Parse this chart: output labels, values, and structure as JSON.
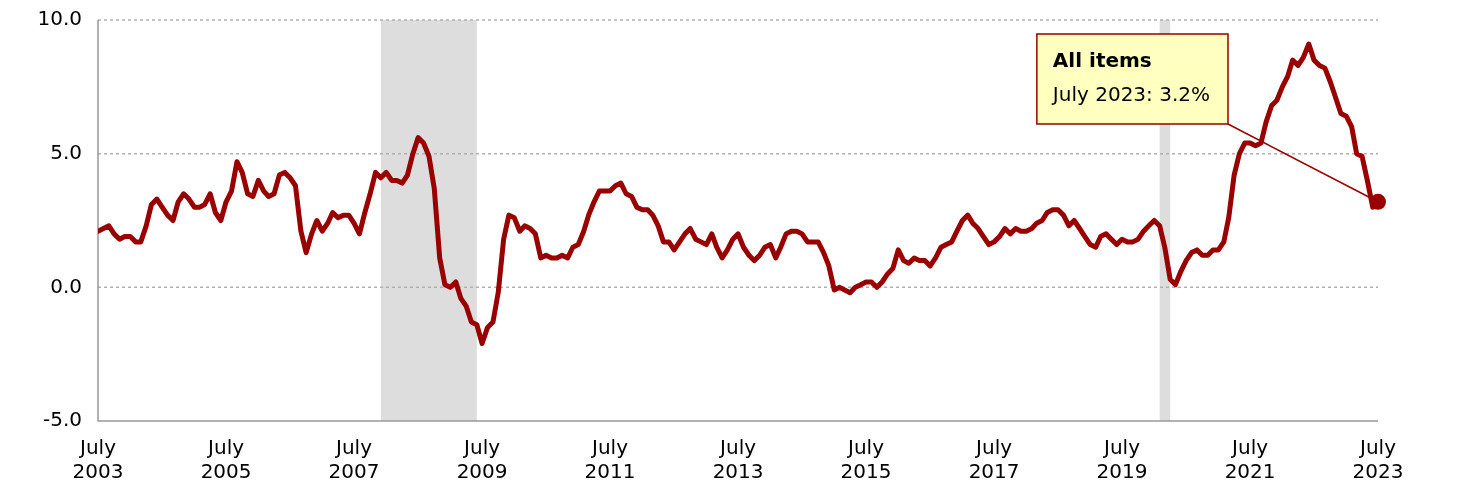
{
  "chart_data": {
    "type": "line",
    "x": [
      "2003-07",
      "2003-08",
      "2003-09",
      "2003-10",
      "2003-11",
      "2003-12",
      "2004-01",
      "2004-02",
      "2004-03",
      "2004-04",
      "2004-05",
      "2004-06",
      "2004-07",
      "2004-08",
      "2004-09",
      "2004-10",
      "2004-11",
      "2004-12",
      "2005-01",
      "2005-02",
      "2005-03",
      "2005-04",
      "2005-05",
      "2005-06",
      "2005-07",
      "2005-08",
      "2005-09",
      "2005-10",
      "2005-11",
      "2005-12",
      "2006-01",
      "2006-02",
      "2006-03",
      "2006-04",
      "2006-05",
      "2006-06",
      "2006-07",
      "2006-08",
      "2006-09",
      "2006-10",
      "2006-11",
      "2006-12",
      "2007-01",
      "2007-02",
      "2007-03",
      "2007-04",
      "2007-05",
      "2007-06",
      "2007-07",
      "2007-08",
      "2007-09",
      "2007-10",
      "2007-11",
      "2007-12",
      "2008-01",
      "2008-02",
      "2008-03",
      "2008-04",
      "2008-05",
      "2008-06",
      "2008-07",
      "2008-08",
      "2008-09",
      "2008-10",
      "2008-11",
      "2008-12",
      "2009-01",
      "2009-02",
      "2009-03",
      "2009-04",
      "2009-05",
      "2009-06",
      "2009-07",
      "2009-08",
      "2009-09",
      "2009-10",
      "2009-11",
      "2009-12",
      "2010-01",
      "2010-02",
      "2010-03",
      "2010-04",
      "2010-05",
      "2010-06",
      "2010-07",
      "2010-08",
      "2010-09",
      "2010-10",
      "2010-11",
      "2010-12",
      "2011-01",
      "2011-02",
      "2011-03",
      "2011-04",
      "2011-05",
      "2011-06",
      "2011-07",
      "2011-08",
      "2011-09",
      "2011-10",
      "2011-11",
      "2011-12",
      "2012-01",
      "2012-02",
      "2012-03",
      "2012-04",
      "2012-05",
      "2012-06",
      "2012-07",
      "2012-08",
      "2012-09",
      "2012-10",
      "2012-11",
      "2012-12",
      "2013-01",
      "2013-02",
      "2013-03",
      "2013-04",
      "2013-05",
      "2013-06",
      "2013-07",
      "2013-08",
      "2013-09",
      "2013-10",
      "2013-11",
      "2013-12",
      "2014-01",
      "2014-02",
      "2014-03",
      "2014-04",
      "2014-05",
      "2014-06",
      "2014-07",
      "2014-08",
      "2014-09",
      "2014-10",
      "2014-11",
      "2014-12",
      "2015-01",
      "2015-02",
      "2015-03",
      "2015-04",
      "2015-05",
      "2015-06",
      "2015-07",
      "2015-08",
      "2015-09",
      "2015-10",
      "2015-11",
      "2015-12",
      "2016-01",
      "2016-02",
      "2016-03",
      "2016-04",
      "2016-05",
      "2016-06",
      "2016-07",
      "2016-08",
      "2016-09",
      "2016-10",
      "2016-11",
      "2016-12",
      "2017-01",
      "2017-02",
      "2017-03",
      "2017-04",
      "2017-05",
      "2017-06",
      "2017-07",
      "2017-08",
      "2017-09",
      "2017-10",
      "2017-11",
      "2017-12",
      "2018-01",
      "2018-02",
      "2018-03",
      "2018-04",
      "2018-05",
      "2018-06",
      "2018-07",
      "2018-08",
      "2018-09",
      "2018-10",
      "2018-11",
      "2018-12",
      "2019-01",
      "2019-02",
      "2019-03",
      "2019-04",
      "2019-05",
      "2019-06",
      "2019-07",
      "2019-08",
      "2019-09",
      "2019-10",
      "2019-11",
      "2019-12",
      "2020-01",
      "2020-02",
      "2020-03",
      "2020-04",
      "2020-05",
      "2020-06",
      "2020-07",
      "2020-08",
      "2020-09",
      "2020-10",
      "2020-11",
      "2020-12",
      "2021-01",
      "2021-02",
      "2021-03",
      "2021-04",
      "2021-05",
      "2021-06",
      "2021-07",
      "2021-08",
      "2021-09",
      "2021-10",
      "2021-11",
      "2021-12",
      "2022-01",
      "2022-02",
      "2022-03",
      "2022-04",
      "2022-05",
      "2022-06",
      "2022-07",
      "2022-08",
      "2022-09",
      "2022-10",
      "2022-11",
      "2022-12",
      "2023-01",
      "2023-02",
      "2023-03",
      "2023-04",
      "2023-05",
      "2023-06",
      "2023-07"
    ],
    "series": [
      {
        "name": "All items",
        "color": "#990000",
        "values": [
          2.1,
          2.2,
          2.3,
          2.0,
          1.8,
          1.9,
          1.9,
          1.7,
          1.7,
          2.3,
          3.1,
          3.3,
          3.0,
          2.7,
          2.5,
          3.2,
          3.5,
          3.3,
          3.0,
          3.0,
          3.1,
          3.5,
          2.8,
          2.5,
          3.2,
          3.6,
          4.7,
          4.3,
          3.5,
          3.4,
          4.0,
          3.6,
          3.4,
          3.5,
          4.2,
          4.3,
          4.1,
          3.8,
          2.1,
          1.3,
          2.0,
          2.5,
          2.1,
          2.4,
          2.8,
          2.6,
          2.7,
          2.7,
          2.4,
          2.0,
          2.8,
          3.5,
          4.3,
          4.1,
          4.3,
          4.0,
          4.0,
          3.9,
          4.2,
          5.0,
          5.6,
          5.4,
          4.9,
          3.7,
          1.1,
          0.1,
          0.0,
          0.2,
          -0.4,
          -0.7,
          -1.3,
          -1.4,
          -2.1,
          -1.5,
          -1.3,
          -0.2,
          1.8,
          2.7,
          2.6,
          2.1,
          2.3,
          2.2,
          2.0,
          1.1,
          1.2,
          1.1,
          1.1,
          1.2,
          1.1,
          1.5,
          1.6,
          2.1,
          2.7,
          3.2,
          3.6,
          3.6,
          3.6,
          3.8,
          3.9,
          3.5,
          3.4,
          3.0,
          2.9,
          2.9,
          2.7,
          2.3,
          1.7,
          1.7,
          1.4,
          1.7,
          2.0,
          2.2,
          1.8,
          1.7,
          1.6,
          2.0,
          1.5,
          1.1,
          1.4,
          1.8,
          2.0,
          1.5,
          1.2,
          1.0,
          1.2,
          1.5,
          1.6,
          1.1,
          1.5,
          2.0,
          2.1,
          2.1,
          2.0,
          1.7,
          1.7,
          1.7,
          1.3,
          0.8,
          -0.1,
          0.0,
          -0.1,
          -0.2,
          0.0,
          0.1,
          0.2,
          0.2,
          0.0,
          0.2,
          0.5,
          0.7,
          1.4,
          1.0,
          0.9,
          1.1,
          1.0,
          1.0,
          0.8,
          1.1,
          1.5,
          1.6,
          1.7,
          2.1,
          2.5,
          2.7,
          2.4,
          2.2,
          1.9,
          1.6,
          1.7,
          1.9,
          2.2,
          2.0,
          2.2,
          2.1,
          2.1,
          2.2,
          2.4,
          2.5,
          2.8,
          2.9,
          2.9,
          2.7,
          2.3,
          2.5,
          2.2,
          1.9,
          1.6,
          1.5,
          1.9,
          2.0,
          1.8,
          1.6,
          1.8,
          1.7,
          1.7,
          1.8,
          2.1,
          2.3,
          2.5,
          2.3,
          1.5,
          0.3,
          0.1,
          0.6,
          1.0,
          1.3,
          1.4,
          1.2,
          1.2,
          1.4,
          1.4,
          1.7,
          2.6,
          4.2,
          5.0,
          5.4,
          5.4,
          5.3,
          5.4,
          6.2,
          6.8,
          7.0,
          7.5,
          7.9,
          8.5,
          8.3,
          8.6,
          9.1,
          8.5,
          8.3,
          8.2,
          7.7,
          7.1,
          6.5,
          6.4,
          6.0,
          5.0,
          4.9,
          4.0,
          3.0,
          3.2
        ]
      }
    ],
    "xlim": [
      "2003-07",
      "2023-07"
    ],
    "xticks": [
      {
        "value": "2003-07",
        "label": "July 2003"
      },
      {
        "value": "2005-07",
        "label": "July 2005"
      },
      {
        "value": "2007-07",
        "label": "July 2007"
      },
      {
        "value": "2009-07",
        "label": "July 2009"
      },
      {
        "value": "2011-07",
        "label": "July 2011"
      },
      {
        "value": "2013-07",
        "label": "July 2013"
      },
      {
        "value": "2015-07",
        "label": "July 2015"
      },
      {
        "value": "2017-07",
        "label": "July 2017"
      },
      {
        "value": "2019-07",
        "label": "July 2019"
      },
      {
        "value": "2021-07",
        "label": "July 2021"
      },
      {
        "value": "2023-07",
        "label": "July 2023"
      }
    ],
    "ylim": [
      -5,
      10
    ],
    "yticks": [
      {
        "value": -5,
        "label": "-5.0"
      },
      {
        "value": 0,
        "label": "0.0"
      },
      {
        "value": 5,
        "label": "5.0"
      },
      {
        "value": 10,
        "label": "10.0"
      }
    ],
    "grid": "y",
    "marker": "none",
    "line_style": "solid",
    "legend": false,
    "bands": [
      {
        "axis": "x",
        "from": "2007-12",
        "to": "2009-06",
        "color": "#dddddd"
      },
      {
        "axis": "x",
        "from": "2020-02",
        "to": "2020-04",
        "color": "#dddddd"
      }
    ],
    "annotations": [
      {
        "text": "July 2023: 3.2%",
        "x": "2023-07",
        "y": 3.2
      }
    ]
  }
}
